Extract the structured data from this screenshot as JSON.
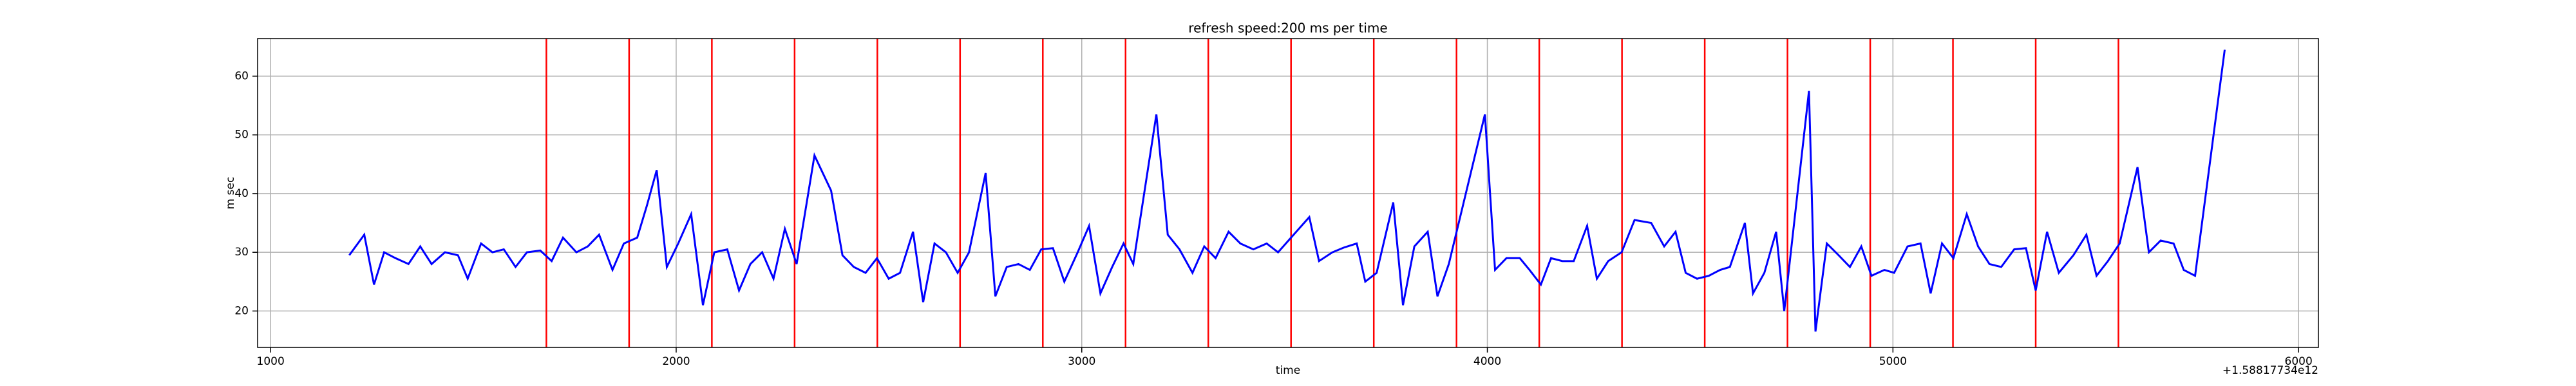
{
  "chart_data": {
    "type": "line",
    "title": "refresh speed:200 ms per time",
    "xlabel": "time",
    "ylabel": "m sec",
    "x_offset_label": "+1.58817734e12",
    "x": [
      1194,
      1231,
      1255,
      1280,
      1308,
      1340,
      1369,
      1397,
      1430,
      1462,
      1486,
      1519,
      1547,
      1575,
      1604,
      1632,
      1665,
      1693,
      1721,
      1754,
      1782,
      1810,
      1843,
      1871,
      1904,
      1928,
      1952,
      1977,
      2005,
      2037,
      2066,
      2094,
      2126,
      2155,
      2183,
      2212,
      2240,
      2268,
      2297,
      2341,
      2382,
      2410,
      2438,
      2467,
      2495,
      2524,
      2552,
      2584,
      2609,
      2637,
      2665,
      2694,
      2722,
      2763,
      2787,
      2815,
      2844,
      2872,
      2900,
      2929,
      2957,
      2990,
      3018,
      3046,
      3075,
      3103,
      3127,
      3184,
      3212,
      3241,
      3273,
      3302,
      3330,
      3362,
      3391,
      3423,
      3456,
      3484,
      3516,
      3561,
      3585,
      3618,
      3646,
      3678,
      3699,
      3727,
      3768,
      3792,
      3820,
      3853,
      3877,
      3905,
      3994,
      4019,
      4047,
      4080,
      4104,
      4132,
      4157,
      4185,
      4213,
      4246,
      4270,
      4298,
      4331,
      4363,
      4404,
      4436,
      4464,
      4489,
      4517,
      4546,
      4574,
      4598,
      4635,
      4655,
      4683,
      4712,
      4732,
      4793,
      4809,
      4837,
      4866,
      4894,
      4922,
      4947,
      4979,
      5003,
      5036,
      5068,
      5093,
      5121,
      5149,
      5182,
      5210,
      5238,
      5267,
      5299,
      5328,
      5352,
      5380,
      5409,
      5445,
      5477,
      5502,
      5530,
      5559,
      5603,
      5631,
      5660,
      5692,
      5717,
      5745,
      5818
    ],
    "series": [
      {
        "color": "#0000ff",
        "values": [
          29.5,
          33,
          24.5,
          30,
          29,
          28,
          31,
          28,
          30,
          29.5,
          25.5,
          31.5,
          30,
          30.5,
          27.5,
          30,
          30.3,
          28.5,
          32.5,
          30,
          31,
          33,
          27,
          31.5,
          32.5,
          38,
          44,
          27.5,
          31.5,
          36.5,
          21,
          30,
          30.5,
          23.5,
          28,
          30,
          25.5,
          34,
          28,
          46.5,
          40.5,
          29.5,
          27.5,
          26.5,
          29,
          25.5,
          26.5,
          33.5,
          21.5,
          31.5,
          30,
          26.5,
          30,
          43.5,
          22.5,
          27.5,
          28,
          27,
          30.5,
          30.7,
          25,
          30,
          34.5,
          23,
          27.5,
          31.5,
          28,
          53.5,
          33,
          30.5,
          26.5,
          31,
          29,
          33.5,
          31.5,
          30.5,
          31.5,
          30,
          32.5,
          36,
          28.5,
          30,
          30.8,
          31.5,
          25,
          26.5,
          38.5,
          21,
          31,
          33.5,
          22.5,
          28,
          53.5,
          27,
          29,
          29,
          27,
          24.5,
          29,
          28.5,
          28.5,
          34.5,
          25.5,
          28.5,
          30,
          35.5,
          35,
          31,
          33.5,
          26.5,
          25.5,
          26,
          27,
          27.5,
          35,
          23,
          26.5,
          33.5,
          20,
          57.5,
          16.5,
          31.5,
          29.5,
          27.5,
          31,
          26,
          27,
          26.5,
          31,
          31.5,
          23,
          31.5,
          29,
          36.5,
          31,
          28,
          27.5,
          30.5,
          30.7,
          23.5,
          33.5,
          26.5,
          29.5,
          33,
          26,
          28.5,
          31.5,
          44.5,
          30,
          32,
          31.5,
          27,
          26,
          64.5
        ]
      }
    ],
    "vlines": [
      1680,
      1884,
      2088,
      2292,
      2496,
      2700,
      2904,
      3108,
      3312,
      3516,
      3720,
      3924,
      4128,
      4332,
      4536,
      4740,
      4944,
      5148,
      5352,
      5556
    ],
    "vline_color": "#ff0000",
    "xlim": [
      968,
      6049
    ],
    "ylim": [
      13.8,
      66.4
    ],
    "xticks": [
      1000,
      2000,
      3000,
      4000,
      5000,
      6000
    ],
    "yticks": [
      20,
      30,
      40,
      50,
      60
    ],
    "grid": true
  }
}
